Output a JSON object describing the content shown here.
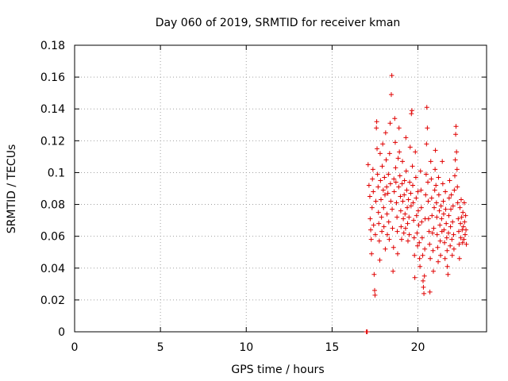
{
  "chart_data": {
    "type": "scatter",
    "title": "Day 060 of 2019, SRMTID for receiver kman",
    "xlabel": "GPS time / hours",
    "ylabel": "SRMTID / TECUs",
    "xlim": [
      0,
      24
    ],
    "ylim": [
      0,
      0.18
    ],
    "xticks": [
      0,
      5,
      10,
      15,
      20
    ],
    "xtick_labels": [
      "0",
      "5",
      "10",
      "15",
      "20"
    ],
    "yticks": [
      0,
      0.02,
      0.04,
      0.06,
      0.08,
      0.1,
      0.12,
      0.14,
      0.16,
      0.18
    ],
    "ytick_labels": [
      "0",
      "0.02",
      "0.04",
      "0.06",
      "0.08",
      "0.1",
      "0.12",
      "0.14",
      "0.16",
      "0.18"
    ],
    "grid": true,
    "marker": "+",
    "color": "#e00000",
    "series": [
      {
        "name": "SRMTID",
        "points": [
          [
            17.0,
            0.0
          ],
          [
            17.05,
            0.0
          ],
          [
            17.1,
            0.105
          ],
          [
            17.15,
            0.092
          ],
          [
            17.2,
            0.085
          ],
          [
            17.22,
            0.071
          ],
          [
            17.25,
            0.064
          ],
          [
            17.28,
            0.058
          ],
          [
            17.3,
            0.049
          ],
          [
            17.33,
            0.078
          ],
          [
            17.35,
            0.096
          ],
          [
            17.38,
            0.102
          ],
          [
            17.4,
            0.088
          ],
          [
            17.42,
            0.067
          ],
          [
            17.45,
            0.036
          ],
          [
            17.48,
            0.026
          ],
          [
            17.5,
            0.023
          ],
          [
            17.52,
            0.061
          ],
          [
            17.55,
            0.082
          ],
          [
            17.58,
            0.128
          ],
          [
            17.6,
            0.132
          ],
          [
            17.62,
            0.115
          ],
          [
            17.65,
            0.099
          ],
          [
            17.68,
            0.091
          ],
          [
            17.7,
            0.075
          ],
          [
            17.72,
            0.068
          ],
          [
            17.75,
            0.057
          ],
          [
            17.78,
            0.045
          ],
          [
            17.8,
            0.112
          ],
          [
            17.82,
            0.095
          ],
          [
            17.85,
            0.083
          ],
          [
            17.88,
            0.072
          ],
          [
            17.9,
            0.063
          ],
          [
            17.92,
            0.104
          ],
          [
            17.95,
            0.118
          ],
          [
            17.98,
            0.089
          ],
          [
            18.0,
            0.078
          ],
          [
            18.02,
            0.066
          ],
          [
            18.05,
            0.097
          ],
          [
            18.08,
            0.086
          ],
          [
            18.1,
            0.052
          ],
          [
            18.12,
            0.125
          ],
          [
            18.15,
            0.108
          ],
          [
            18.18,
            0.091
          ],
          [
            18.2,
            0.074
          ],
          [
            18.22,
            0.061
          ],
          [
            18.25,
            0.087
          ],
          [
            18.28,
            0.099
          ],
          [
            18.3,
            0.069
          ],
          [
            18.33,
            0.058
          ],
          [
            18.35,
            0.112
          ],
          [
            18.38,
            0.131
          ],
          [
            18.4,
            0.093
          ],
          [
            18.42,
            0.082
          ],
          [
            18.45,
            0.149
          ],
          [
            18.48,
            0.161
          ],
          [
            18.5,
            0.077
          ],
          [
            18.52,
            0.065
          ],
          [
            18.55,
            0.038
          ],
          [
            18.58,
            0.053
          ],
          [
            18.6,
            0.096
          ],
          [
            18.62,
            0.088
          ],
          [
            18.65,
            0.134
          ],
          [
            18.68,
            0.119
          ],
          [
            18.7,
            0.103
          ],
          [
            18.72,
            0.094
          ],
          [
            18.75,
            0.081
          ],
          [
            18.78,
            0.072
          ],
          [
            18.8,
            0.063
          ],
          [
            18.82,
            0.049
          ],
          [
            18.85,
            0.109
          ],
          [
            18.88,
            0.091
          ],
          [
            18.9,
            0.128
          ],
          [
            18.92,
            0.113
          ],
          [
            18.95,
            0.098
          ],
          [
            18.98,
            0.085
          ],
          [
            19.0,
            0.076
          ],
          [
            19.02,
            0.066
          ],
          [
            19.05,
            0.058
          ],
          [
            19.08,
            0.093
          ],
          [
            19.1,
            0.107
          ],
          [
            19.12,
            0.082
          ],
          [
            19.15,
            0.071
          ],
          [
            19.18,
            0.062
          ],
          [
            19.2,
            0.086
          ],
          [
            19.22,
            0.095
          ],
          [
            19.25,
            0.074
          ],
          [
            19.28,
            0.065
          ],
          [
            19.3,
            0.122
          ],
          [
            19.32,
            0.101
          ],
          [
            19.35,
            0.089
          ],
          [
            19.38,
            0.078
          ],
          [
            19.4,
            0.068
          ],
          [
            19.42,
            0.057
          ],
          [
            19.45,
            0.083
          ],
          [
            19.48,
            0.072
          ],
          [
            19.5,
            0.061
          ],
          [
            19.52,
            0.094
          ],
          [
            19.55,
            0.116
          ],
          [
            19.58,
            0.087
          ],
          [
            19.6,
            0.079
          ],
          [
            19.62,
            0.137
          ],
          [
            19.65,
            0.139
          ],
          [
            19.68,
            0.104
          ],
          [
            19.7,
            0.092
          ],
          [
            19.72,
            0.081
          ],
          [
            19.75,
            0.07
          ],
          [
            19.78,
            0.059
          ],
          [
            19.8,
            0.048
          ],
          [
            19.82,
            0.034
          ],
          [
            19.85,
            0.113
          ],
          [
            19.88,
            0.097
          ],
          [
            19.9,
            0.084
          ],
          [
            19.92,
            0.073
          ],
          [
            19.95,
            0.062
          ],
          [
            19.98,
            0.054
          ],
          [
            20.0,
            0.088
          ],
          [
            20.02,
            0.076
          ],
          [
            20.05,
            0.067
          ],
          [
            20.08,
            0.056
          ],
          [
            20.1,
            0.046
          ],
          [
            20.12,
            0.041
          ],
          [
            20.15,
            0.101
          ],
          [
            20.18,
            0.089
          ],
          [
            20.2,
            0.078
          ],
          [
            20.22,
            0.069
          ],
          [
            20.25,
            0.059
          ],
          [
            20.28,
            0.048
          ],
          [
            20.3,
            0.032
          ],
          [
            20.32,
            0.028
          ],
          [
            20.35,
            0.024
          ],
          [
            20.38,
            0.035
          ],
          [
            20.4,
            0.052
          ],
          [
            20.42,
            0.071
          ],
          [
            20.45,
            0.086
          ],
          [
            20.48,
            0.099
          ],
          [
            20.5,
            0.118
          ],
          [
            20.52,
            0.141
          ],
          [
            20.55,
            0.128
          ],
          [
            20.58,
            0.094
          ],
          [
            20.6,
            0.082
          ],
          [
            20.62,
            0.071
          ],
          [
            20.65,
            0.063
          ],
          [
            20.68,
            0.055
          ],
          [
            20.7,
            0.025
          ],
          [
            20.72,
            0.046
          ],
          [
            20.75,
            0.107
          ],
          [
            20.78,
            0.096
          ],
          [
            20.8,
            0.084
          ],
          [
            20.82,
            0.073
          ],
          [
            20.85,
            0.062
          ],
          [
            20.88,
            0.051
          ],
          [
            20.9,
            0.038
          ],
          [
            20.92,
            0.065
          ],
          [
            20.95,
            0.078
          ],
          [
            20.98,
            0.089
          ],
          [
            21.0,
            0.102
          ],
          [
            21.02,
            0.114
          ],
          [
            21.05,
            0.092
          ],
          [
            21.08,
            0.081
          ],
          [
            21.1,
            0.072
          ],
          [
            21.12,
            0.061
          ],
          [
            21.15,
            0.053
          ],
          [
            21.18,
            0.044
          ],
          [
            21.2,
            0.097
          ],
          [
            21.22,
            0.086
          ],
          [
            21.25,
            0.076
          ],
          [
            21.28,
            0.067
          ],
          [
            21.3,
            0.057
          ],
          [
            21.32,
            0.048
          ],
          [
            21.35,
            0.079
          ],
          [
            21.38,
            0.071
          ],
          [
            21.4,
            0.063
          ],
          [
            21.42,
            0.107
          ],
          [
            21.45,
            0.093
          ],
          [
            21.48,
            0.082
          ],
          [
            21.5,
            0.074
          ],
          [
            21.52,
            0.064
          ],
          [
            21.55,
            0.056
          ],
          [
            21.58,
            0.046
          ],
          [
            21.6,
            0.088
          ],
          [
            21.62,
            0.077
          ],
          [
            21.65,
            0.068
          ],
          [
            21.68,
            0.059
          ],
          [
            21.7,
            0.051
          ],
          [
            21.72,
            0.041
          ],
          [
            21.75,
            0.036
          ],
          [
            21.78,
            0.062
          ],
          [
            21.8,
            0.073
          ],
          [
            21.82,
            0.084
          ],
          [
            21.85,
            0.095
          ],
          [
            21.88,
            0.054
          ],
          [
            21.9,
            0.066
          ],
          [
            21.92,
            0.077
          ],
          [
            21.95,
            0.086
          ],
          [
            21.98,
            0.058
          ],
          [
            22.0,
            0.048
          ],
          [
            22.02,
            0.069
          ],
          [
            22.05,
            0.079
          ],
          [
            22.08,
            0.061
          ],
          [
            22.1,
            0.052
          ],
          [
            22.12,
            0.089
          ],
          [
            22.15,
            0.098
          ],
          [
            22.18,
            0.108
          ],
          [
            22.2,
            0.124
          ],
          [
            22.22,
            0.129
          ],
          [
            22.25,
            0.113
          ],
          [
            22.28,
            0.102
          ],
          [
            22.3,
            0.091
          ],
          [
            22.32,
            0.081
          ],
          [
            22.35,
            0.071
          ],
          [
            22.38,
            0.063
          ],
          [
            22.4,
            0.055
          ],
          [
            22.42,
            0.046
          ],
          [
            22.45,
            0.078
          ],
          [
            22.48,
            0.068
          ],
          [
            22.5,
            0.059
          ],
          [
            22.52,
            0.083
          ],
          [
            22.55,
            0.072
          ],
          [
            22.58,
            0.064
          ],
          [
            22.6,
            0.056
          ],
          [
            22.62,
            0.075
          ],
          [
            22.65,
            0.066
          ],
          [
            22.68,
            0.058
          ],
          [
            22.7,
            0.081
          ],
          [
            22.72,
            0.069
          ],
          [
            22.75,
            0.061
          ],
          [
            22.78,
            0.073
          ],
          [
            22.8,
            0.064
          ],
          [
            22.82,
            0.055
          ]
        ]
      }
    ]
  }
}
